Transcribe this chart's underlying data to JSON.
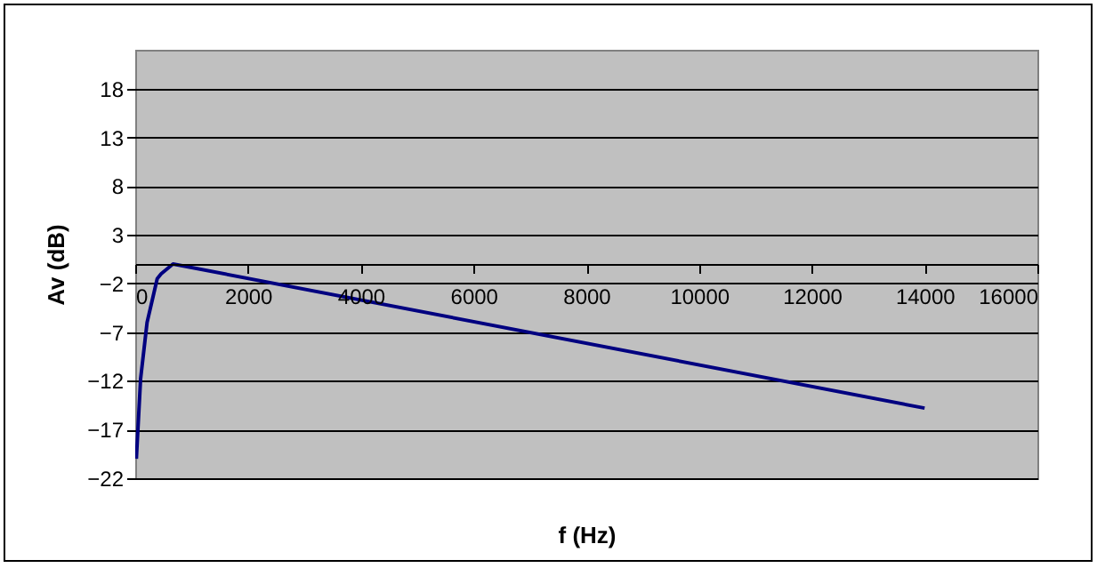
{
  "chart_data": {
    "type": "line",
    "xlabel": "f (Hz)",
    "ylabel": "Av (dB)",
    "x": [
      20,
      95,
      210,
      390,
      460,
      670,
      14000
    ],
    "series": [
      {
        "color": "#000080",
        "values": [
          -20.0,
          -11.8,
          -6.0,
          -1.5,
          -1.0,
          0.0,
          -14.8
        ]
      }
    ],
    "xlim": [
      0,
      16000
    ],
    "xticks": [
      0,
      2000,
      4000,
      6000,
      8000,
      10000,
      12000,
      14000,
      16000
    ],
    "ylim": [
      -22,
      22
    ],
    "yticks": [
      -22,
      -17,
      -12,
      -7,
      -2,
      3,
      8,
      13,
      18
    ],
    "grid": "y",
    "marker": "none",
    "line_style": "solid"
  }
}
